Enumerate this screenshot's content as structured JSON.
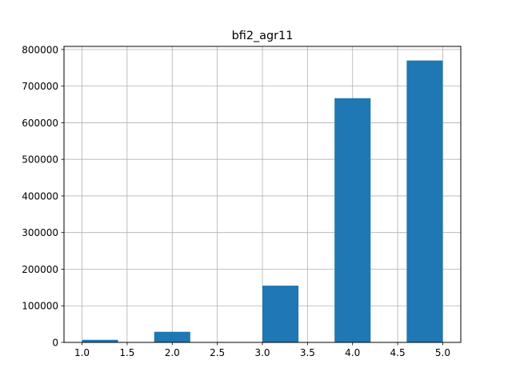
{
  "chart_data": {
    "type": "bar",
    "title": "bfi2_agr11",
    "xlabel": "",
    "ylabel": "",
    "xlim": [
      0.8,
      5.2
    ],
    "ylim": [
      0,
      808500
    ],
    "x_ticks": [
      1.0,
      1.5,
      2.0,
      2.5,
      3.0,
      3.5,
      4.0,
      4.5,
      5.0
    ],
    "x_tick_labels": [
      "1.0",
      "1.5",
      "2.0",
      "2.5",
      "3.0",
      "3.5",
      "4.0",
      "4.5",
      "5.0"
    ],
    "y_ticks": [
      0,
      100000,
      200000,
      300000,
      400000,
      500000,
      600000,
      700000,
      800000
    ],
    "y_tick_labels": [
      "0",
      "100000",
      "200000",
      "300000",
      "400000",
      "500000",
      "600000",
      "700000",
      "800000"
    ],
    "grid": true,
    "bar_color": "#1f77b4",
    "bins": [
      {
        "start": 1.0,
        "end": 1.4,
        "value": 7000
      },
      {
        "start": 1.4,
        "end": 1.8,
        "value": 0
      },
      {
        "start": 1.8,
        "end": 2.2,
        "value": 29000
      },
      {
        "start": 2.2,
        "end": 2.6,
        "value": 0
      },
      {
        "start": 2.6,
        "end": 3.0,
        "value": 0
      },
      {
        "start": 3.0,
        "end": 3.4,
        "value": 155000
      },
      {
        "start": 3.4,
        "end": 3.8,
        "value": 0
      },
      {
        "start": 3.8,
        "end": 4.2,
        "value": 667000
      },
      {
        "start": 4.2,
        "end": 4.6,
        "value": 0
      },
      {
        "start": 4.6,
        "end": 5.0,
        "value": 770000
      }
    ]
  }
}
